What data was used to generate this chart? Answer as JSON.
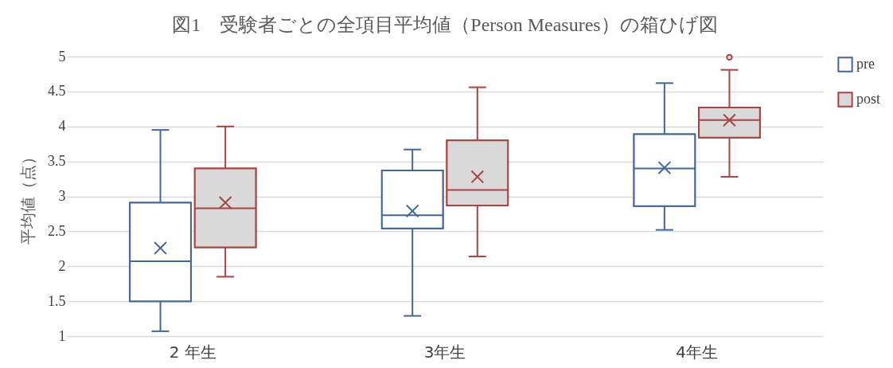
{
  "chart_data": {
    "type": "box",
    "title": "図1　受験者ごとの全項目平均値（Person Measures）の箱ひげ図",
    "ylabel": "平均値（点）",
    "categories": [
      "2 年生",
      "3年生",
      "4年生"
    ],
    "series": [
      {
        "name": "pre",
        "color": "#41679d",
        "boxes": [
          {
            "low": 1.07,
            "q1": 1.5,
            "median": 2.07,
            "q3": 2.91,
            "high": 3.95,
            "mean": 2.26
          },
          {
            "low": 1.29,
            "q1": 2.54,
            "median": 2.73,
            "q3": 3.37,
            "high": 3.67,
            "mean": 2.79
          },
          {
            "low": 2.52,
            "q1": 2.86,
            "median": 3.4,
            "q3": 3.89,
            "high": 4.62,
            "mean": 3.41
          }
        ]
      },
      {
        "name": "post",
        "color": "#a94442",
        "boxes": [
          {
            "low": 1.85,
            "q1": 2.27,
            "median": 2.83,
            "q3": 3.4,
            "high": 4.0,
            "mean": 2.91
          },
          {
            "low": 2.14,
            "q1": 2.87,
            "median": 3.09,
            "q3": 3.8,
            "high": 4.56,
            "mean": 3.28
          },
          {
            "low": 3.28,
            "q1": 3.84,
            "median": 4.09,
            "q3": 4.27,
            "high": 4.81,
            "mean": 4.09,
            "outliers": [
              4.99
            ]
          }
        ]
      }
    ],
    "ylim": [
      1,
      5
    ],
    "yticks": [
      1,
      1.5,
      2,
      2.5,
      3,
      3.5,
      4,
      4.5,
      5
    ],
    "grid": "y",
    "legend": "right"
  }
}
